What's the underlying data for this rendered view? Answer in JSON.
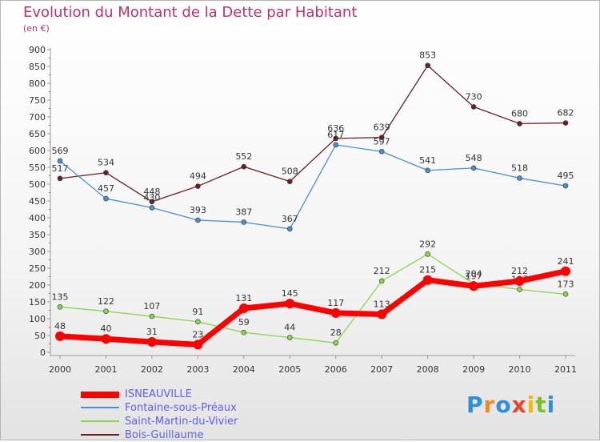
{
  "header": {
    "title": "Evolution du Montant de la Dette par Habitant",
    "subtitle": "(en €)"
  },
  "brand": {
    "letters": [
      {
        "ch": "P",
        "color": "#2f8fd8"
      },
      {
        "ch": "r",
        "color": "#f08a1e"
      },
      {
        "ch": "o",
        "color": "#2f8fd8"
      },
      {
        "ch": "x",
        "color": "#e8462a"
      },
      {
        "ch": "i",
        "color": "#f5b800"
      },
      {
        "ch": "t",
        "color": "#7bbf2a"
      },
      {
        "ch": "i",
        "color": "#2f8fd8"
      }
    ]
  },
  "chart_data": {
    "type": "line",
    "title": "Evolution du Montant de la Dette par Habitant",
    "subtitle": "(en €)",
    "x": [
      "2000",
      "2001",
      "2002",
      "2003",
      "2004",
      "2005",
      "2006",
      "2007",
      "2008",
      "2009",
      "2010",
      "2011"
    ],
    "ylim": [
      0,
      900
    ],
    "yticks": [
      0,
      50,
      100,
      150,
      200,
      250,
      300,
      350,
      400,
      450,
      500,
      550,
      600,
      650,
      700,
      750,
      800,
      850,
      900
    ],
    "grid": false,
    "legend": "bottom-left",
    "series": [
      {
        "name": "Bois-Guillaume",
        "color": "#6b1f24",
        "values": [
          517,
          534,
          448,
          494,
          552,
          508,
          636,
          639,
          853,
          730,
          680,
          682
        ]
      },
      {
        "name": "Fontaine-sous-Préaux",
        "color": "#4a8fd0",
        "values": [
          569,
          457,
          430,
          393,
          387,
          367,
          617,
          597,
          541,
          548,
          518,
          495
        ]
      },
      {
        "name": "Saint-Martin-du-Vivier",
        "color": "#8ad44a",
        "values": [
          135,
          122,
          107,
          91,
          59,
          44,
          28,
          212,
          292,
          204,
          187,
          173
        ]
      },
      {
        "name": "ISNEAUVILLE",
        "color": "#ff0000",
        "values": [
          48,
          40,
          31,
          23,
          131,
          145,
          117,
          113,
          215,
          197,
          212,
          241
        ]
      }
    ]
  }
}
